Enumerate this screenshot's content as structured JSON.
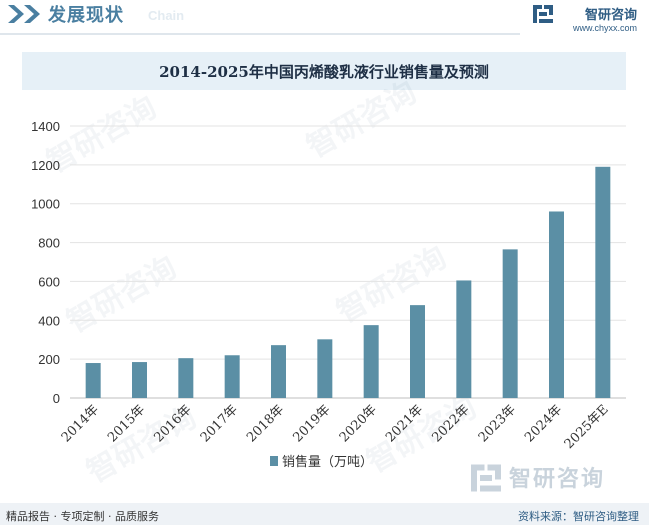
{
  "header": {
    "title": "发展现状",
    "subtitle": "Chain"
  },
  "brand": {
    "name": "智研咨询",
    "url": "www.chyxx.com"
  },
  "watermark": {
    "text": "智研咨询"
  },
  "footer": {
    "left": "精品报告 · 专项定制 · 品质服务",
    "right": "资料来源：智研咨询整理"
  },
  "colors": {
    "bar": "#5b8fa5",
    "header_accent": "#4a7fa1",
    "brand": "#2f5d84"
  },
  "chart_data": {
    "type": "bar",
    "title": "2014-2025年中国丙烯酸乳液行业销售量及预测",
    "categories": [
      "2014年",
      "2015年",
      "2016年",
      "2017年",
      "2018年",
      "2019年",
      "2020年",
      "2021年",
      "2022年",
      "2023年",
      "2024年",
      "2025年E"
    ],
    "series": [
      {
        "name": "销售量（万吨）",
        "values": [
          180,
          185,
          205,
          220,
          272,
          302,
          375,
          478,
          605,
          765,
          960,
          1190
        ]
      }
    ],
    "yticks": [
      "0",
      "200",
      "400",
      "600",
      "800",
      "1000",
      "1200",
      "1400"
    ],
    "ylim": [
      0,
      1400
    ],
    "grid": true,
    "legend": "bottom"
  }
}
